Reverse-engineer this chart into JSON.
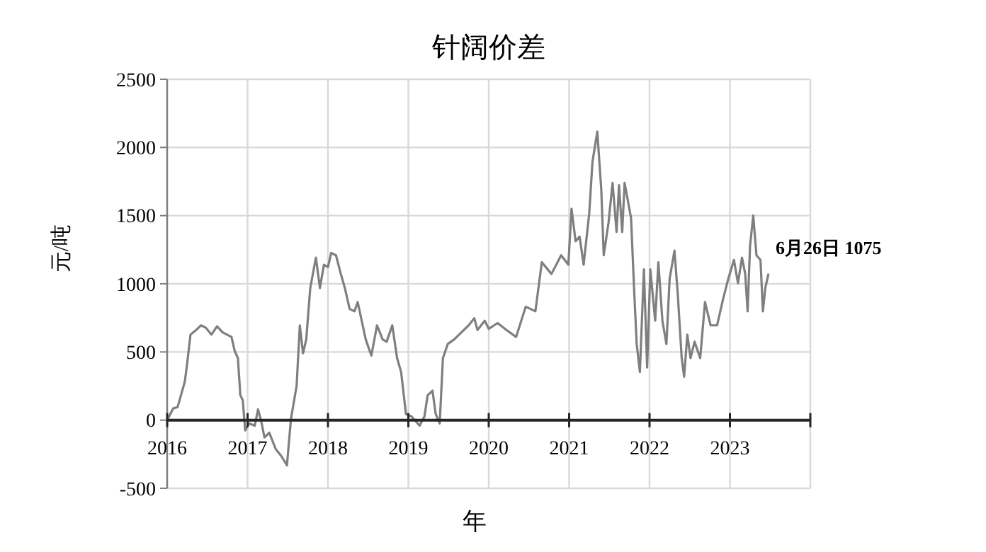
{
  "chart_data": {
    "type": "line",
    "title": "针阔价差",
    "xlabel": "年",
    "ylabel": "元/吨",
    "xlim": [
      2016,
      2024
    ],
    "xticks": [
      2016,
      2017,
      2018,
      2019,
      2020,
      2021,
      2022,
      2023,
      {
        "value": 2024,
        "label": null
      }
    ],
    "ylim": [
      -500,
      2500
    ],
    "yticks": [
      -500,
      0,
      500,
      1000,
      1500,
      2000,
      2500
    ],
    "grid": true,
    "marker": "none",
    "line_style": "solid",
    "annotations": [
      {
        "text": "6月26日 1075",
        "x": 2023.48,
        "y": 1075
      }
    ],
    "series": [
      {
        "color": "#7f7f7f",
        "x": [
          2016.0,
          2016.075,
          2016.13,
          2016.22,
          2016.25,
          2016.29,
          2016.36,
          2016.42,
          2016.48,
          2016.55,
          2016.62,
          2016.69,
          2016.8,
          2016.84,
          2016.88,
          2016.91,
          2016.94,
          2016.97,
          2017.02,
          2017.09,
          2017.13,
          2017.17,
          2017.21,
          2017.27,
          2017.35,
          2017.42,
          2017.49,
          2017.54,
          2017.61,
          2017.65,
          2017.69,
          2017.73,
          2017.78,
          2017.85,
          2017.9,
          2017.95,
          2018.0,
          2018.04,
          2018.1,
          2018.16,
          2018.21,
          2018.27,
          2018.33,
          2018.37,
          2018.42,
          2018.47,
          2018.54,
          2018.61,
          2018.68,
          2018.73,
          2018.8,
          2018.86,
          2018.91,
          2018.97,
          2019.04,
          2019.14,
          2019.2,
          2019.24,
          2019.3,
          2019.34,
          2019.39,
          2019.43,
          2019.49,
          2019.57,
          2019.66,
          2019.75,
          2019.82,
          2019.86,
          2019.95,
          2020.0,
          2020.11,
          2020.22,
          2020.34,
          2020.46,
          2020.58,
          2020.66,
          2020.78,
          2020.9,
          2020.99,
          2021.03,
          2021.08,
          2021.13,
          2021.18,
          2021.25,
          2021.29,
          2021.35,
          2021.4,
          2021.43,
          2021.49,
          2021.54,
          2021.59,
          2021.62,
          2021.66,
          2021.69,
          2021.77,
          2021.81,
          2021.84,
          2021.88,
          2021.93,
          2021.97,
          2022.01,
          2022.07,
          2022.11,
          2022.16,
          2022.21,
          2022.25,
          2022.31,
          2022.35,
          2022.4,
          2022.43,
          2022.47,
          2022.51,
          2022.56,
          2022.63,
          2022.69,
          2022.76,
          2022.84,
          2022.92,
          2022.98,
          2023.05,
          2023.1,
          2023.15,
          2023.19,
          2023.22,
          2023.25,
          2023.29,
          2023.33,
          2023.38,
          2023.41,
          2023.44,
          2023.48
        ],
        "values": [
          0,
          86,
          96,
          284,
          421,
          627,
          661,
          695,
          678,
          627,
          688,
          644,
          610,
          507,
          455,
          182,
          147,
          -75,
          -24,
          -41,
          79,
          -7,
          -127,
          -92,
          -212,
          -264,
          -332,
          10,
          250,
          695,
          490,
          592,
          969,
          1192,
          969,
          1140,
          1123,
          1226,
          1209,
          1072,
          969,
          815,
          798,
          866,
          729,
          592,
          473,
          695,
          592,
          575,
          695,
          455,
          353,
          45,
          27,
          -41,
          27,
          182,
          216,
          45,
          -24,
          455,
          558,
          592,
          644,
          695,
          747,
          661,
          729,
          670,
          712,
          661,
          610,
          832,
          798,
          1158,
          1072,
          1209,
          1140,
          1551,
          1312,
          1346,
          1140,
          1517,
          1894,
          2116,
          1688,
          1209,
          1449,
          1740,
          1380,
          1723,
          1380,
          1740,
          1483,
          935,
          558,
          353,
          1106,
          387,
          1106,
          729,
          1158,
          729,
          558,
          1038,
          1243,
          935,
          455,
          318,
          627,
          455,
          575,
          455,
          866,
          695,
          695,
          901,
          1038,
          1175,
          1004,
          1192,
          1072,
          798,
          1277,
          1500,
          1209,
          1175,
          798,
          969,
          1075
        ]
      }
    ]
  }
}
